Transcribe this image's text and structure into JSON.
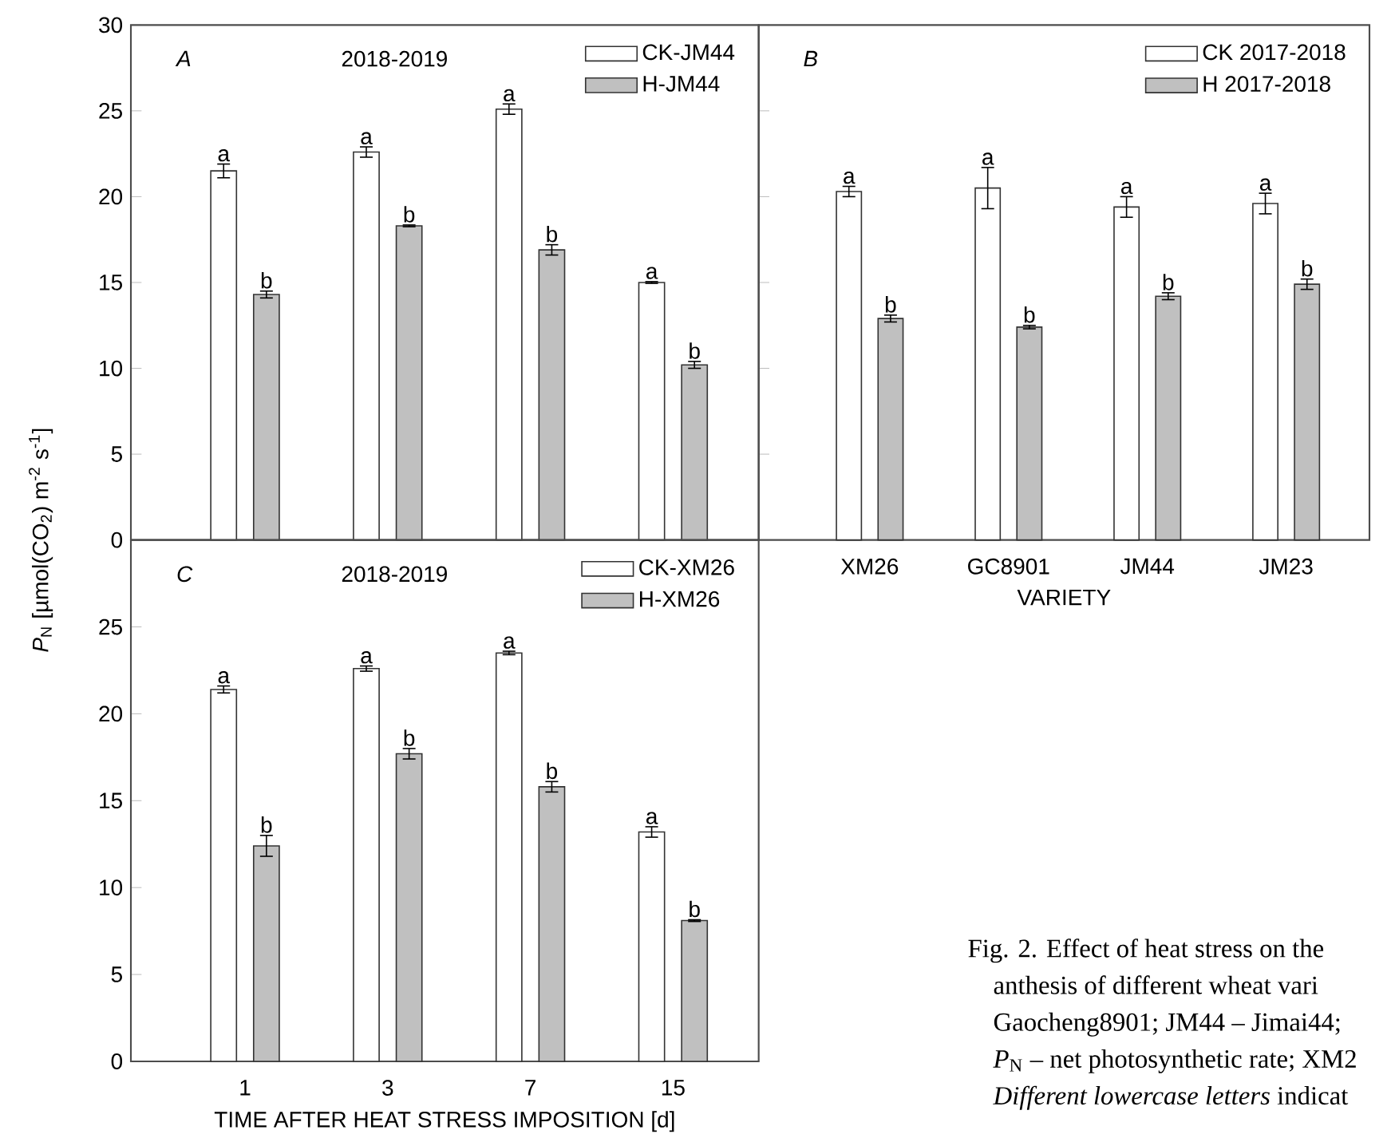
{
  "chart_data": [
    {
      "type": "bar",
      "categories": [
        "1",
        "3",
        "7",
        "15"
      ],
      "ylabel": "*P*$_{N}$ [µmol(CO$_{2}$) m$^{-2}$ s$^{-1}$]",
      "ylim": [
        0,
        30
      ],
      "yticks": [
        0,
        5,
        10,
        15,
        20,
        25,
        30
      ],
      "tick_labels": "y",
      "legend": "top right",
      "series": [
        {
          "name": "CK-JM44",
          "color": "#ffffff",
          "values": [
            21.5,
            22.6,
            25.1,
            15.0
          ],
          "errors": [
            0.4,
            0.3,
            0.3,
            0.05
          ],
          "value_labels": [
            "a",
            "a",
            "a",
            "a"
          ]
        },
        {
          "name": "H-JM44",
          "color": "#c0c0c0",
          "values": [
            14.3,
            18.3,
            16.9,
            10.2
          ],
          "errors": [
            0.2,
            0.05,
            0.3,
            0.2
          ],
          "value_labels": [
            "b",
            "b",
            "b",
            "b"
          ]
        }
      ],
      "annotations": [
        "A",
        "2018-2019"
      ]
    },
    {
      "type": "bar",
      "categories": [
        "XM26",
        "GC8901",
        "JM44",
        "JM23"
      ],
      "xlabel": "VARIETY",
      "ylim": [
        0,
        30
      ],
      "yticks": [
        0,
        5,
        10,
        15,
        20,
        25,
        30
      ],
      "tick_labels": "x",
      "legend": "top right",
      "series": [
        {
          "name": "CK 2017-2018",
          "color": "#ffffff",
          "values": [
            20.3,
            20.5,
            19.4,
            19.6
          ],
          "errors": [
            0.3,
            1.2,
            0.6,
            0.6
          ],
          "value_labels": [
            "a",
            "a",
            "a",
            "a"
          ]
        },
        {
          "name": "H 2017-2018",
          "color": "#c0c0c0",
          "values": [
            12.9,
            12.4,
            14.2,
            14.9
          ],
          "errors": [
            0.2,
            0.1,
            0.2,
            0.3
          ],
          "value_labels": [
            "b",
            "b",
            "b",
            "b"
          ]
        }
      ],
      "annotations": [
        "B"
      ]
    },
    {
      "type": "bar",
      "categories": [
        "1",
        "3",
        "7",
        "15"
      ],
      "xlabel": "TIME AFTER HEAT STRESS IMPOSITION [d]",
      "ylim": [
        0,
        30
      ],
      "yticks": [
        0,
        5,
        10,
        15,
        20,
        25
      ],
      "legend": "top right",
      "series": [
        {
          "name": "CK-XM26",
          "color": "#ffffff",
          "values": [
            21.4,
            22.6,
            23.5,
            13.2
          ],
          "errors": [
            0.2,
            0.15,
            0.1,
            0.3
          ],
          "value_labels": [
            "a",
            "a",
            "a",
            "a"
          ]
        },
        {
          "name": "H-XM26",
          "color": "#c0c0c0",
          "values": [
            12.4,
            17.7,
            15.8,
            8.1
          ],
          "errors": [
            0.6,
            0.3,
            0.3,
            0.05
          ],
          "value_labels": [
            "b",
            "b",
            "b",
            "b"
          ]
        }
      ],
      "annotations": [
        "C",
        "2018-2019",
        "Fig. 2. Effect of heat stress on the",
        "anthesis of different wheat vari",
        "Gaocheng8901; JM44 – Jimai44;",
        "*P*$_{N}$ – net photosynthetic rate; XM2",
        "*Different lowercase letters* indicat"
      ]
    }
  ]
}
